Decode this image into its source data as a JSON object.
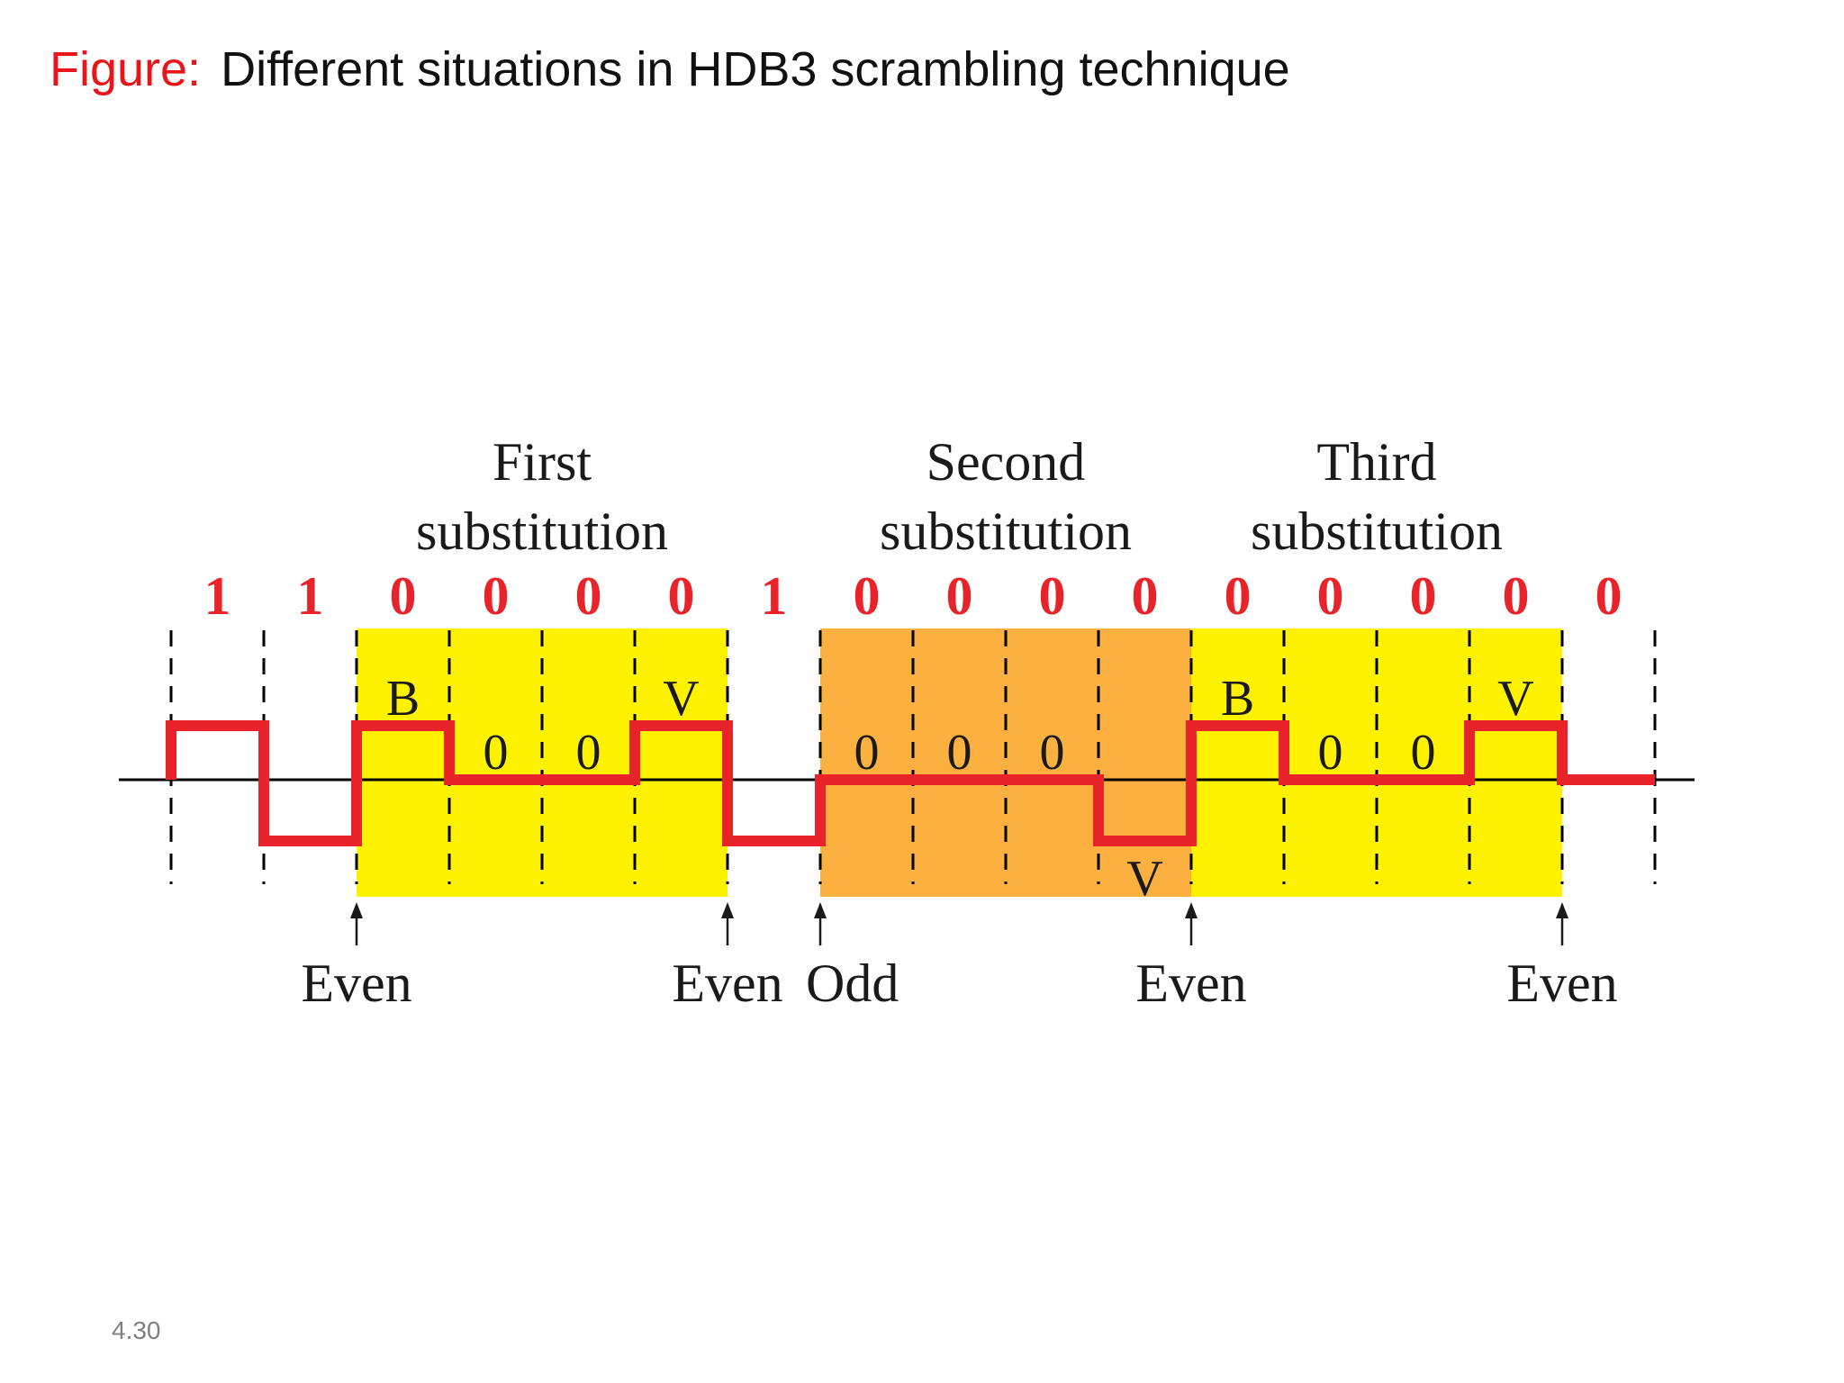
{
  "slide": {
    "title_lead": "Figure:",
    "title_text": "Different situations in HDB3 scrambling technique",
    "slide_number": "4.30"
  },
  "diagram": {
    "substitutions": [
      {
        "line1": "First",
        "line2": "substitution",
        "first_bit": 2,
        "last_bit": 5,
        "fill": "#fff200"
      },
      {
        "line1": "Second",
        "line2": "substitution",
        "first_bit": 7,
        "last_bit": 10,
        "fill": "#fbb040"
      },
      {
        "line1": "Third",
        "line2": "substitution",
        "first_bit": 11,
        "last_bit": 14,
        "fill": "#fff200"
      }
    ],
    "data_bits": [
      "1",
      "1",
      "0",
      "0",
      "0",
      "0",
      "1",
      "0",
      "0",
      "0",
      "0",
      "0",
      "0",
      "0",
      "0",
      "0"
    ],
    "signal_levels": [
      1,
      -1,
      1,
      0,
      0,
      1,
      -1,
      0,
      0,
      0,
      -1,
      1,
      0,
      0,
      1,
      0
    ],
    "signal_labels": [
      {
        "bit": 2,
        "text": "B",
        "pos": "above"
      },
      {
        "bit": 3,
        "text": "0",
        "pos": "above"
      },
      {
        "bit": 4,
        "text": "0",
        "pos": "above"
      },
      {
        "bit": 5,
        "text": "V",
        "pos": "above"
      },
      {
        "bit": 7,
        "text": "0",
        "pos": "above"
      },
      {
        "bit": 8,
        "text": "0",
        "pos": "above"
      },
      {
        "bit": 9,
        "text": "0",
        "pos": "above"
      },
      {
        "bit": 10,
        "text": "V",
        "pos": "below"
      },
      {
        "bit": 11,
        "text": "B",
        "pos": "above"
      },
      {
        "bit": 12,
        "text": "0",
        "pos": "above"
      },
      {
        "bit": 13,
        "text": "0",
        "pos": "above"
      },
      {
        "bit": 14,
        "text": "V",
        "pos": "above"
      }
    ],
    "parity_markers": [
      {
        "boundary": 2,
        "text": "Even"
      },
      {
        "boundary": 6,
        "text": "Even"
      },
      {
        "boundary": 7,
        "text": "Odd"
      },
      {
        "boundary": 11,
        "text": "Even"
      },
      {
        "boundary": 15,
        "text": "Even"
      }
    ],
    "colors": {
      "signal": "#e8232a",
      "bit_text": "#e8232a",
      "axis": "#000000",
      "dash": "#000000",
      "label_text": "#1a1a1a"
    }
  }
}
